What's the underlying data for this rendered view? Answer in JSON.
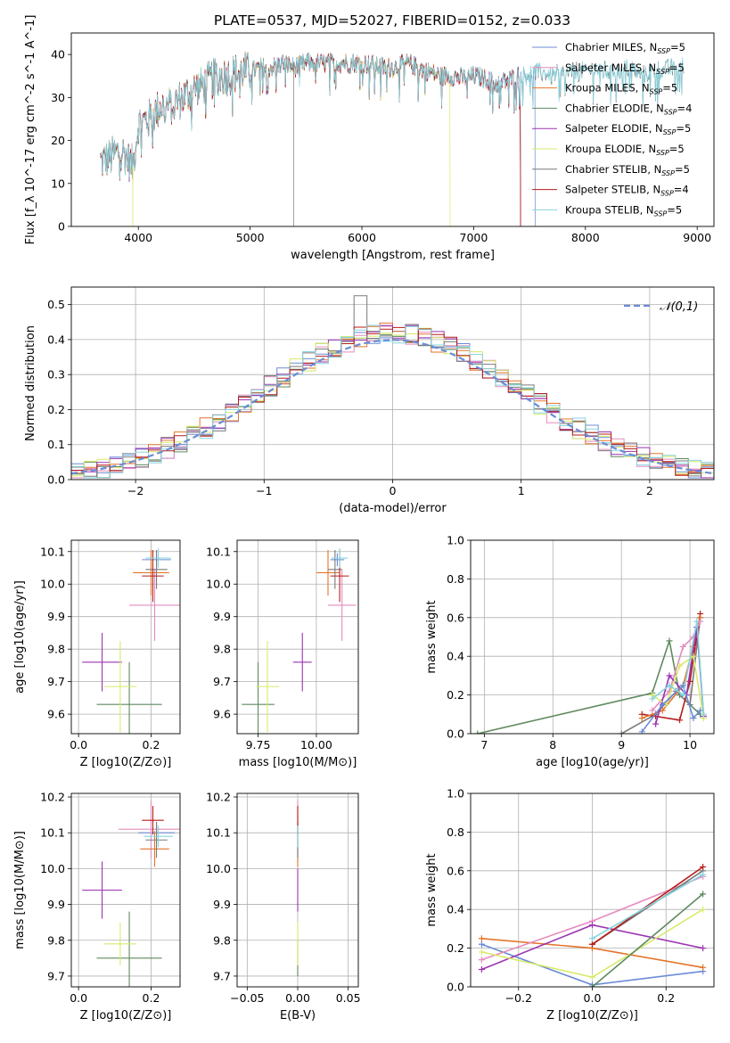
{
  "title": "PLATE=0537, MJD=52027, FIBERID=0152, z=0.033",
  "colors": {
    "Chabrier MILES": "#6b8bd6",
    "Salpeter MILES": "#e58bbe",
    "Kroupa MILES": "#e4752a",
    "Chabrier ELODIE": "#5f8a5f",
    "Salpeter ELODIE": "#9b34b1",
    "Kroupa ELODIE": "#d7ea6b",
    "Chabrier STELIB": "#7a7a7a",
    "Salpeter STELIB": "#b71c1c",
    "Kroupa STELIB": "#86d3de"
  },
  "legend1": [
    {
      "text": "Chabrier MILES, N",
      "sub": "SSP",
      "tail": "=5",
      "key": "Chabrier MILES"
    },
    {
      "text": "Salpeter MILES, N",
      "sub": "SSP",
      "tail": "=5",
      "key": "Salpeter MILES"
    },
    {
      "text": "Kroupa MILES, N",
      "sub": "SSP",
      "tail": "=5",
      "key": "Kroupa MILES"
    },
    {
      "text": "Chabrier ELODIE, N",
      "sub": "SSP",
      "tail": "=4",
      "key": "Chabrier ELODIE"
    },
    {
      "text": "Salpeter ELODIE, N",
      "sub": "SSP",
      "tail": "=5",
      "key": "Salpeter ELODIE"
    },
    {
      "text": "Kroupa ELODIE, N",
      "sub": "SSP",
      "tail": "=5",
      "key": "Kroupa ELODIE"
    },
    {
      "text": "Chabrier STELIB, N",
      "sub": "SSP",
      "tail": "=5",
      "key": "Chabrier STELIB"
    },
    {
      "text": "Salpeter STELIB, N",
      "sub": "SSP",
      "tail": "=4",
      "key": "Salpeter STELIB"
    },
    {
      "text": "Kroupa STELIB, N",
      "sub": "SSP",
      "tail": "=5",
      "key": "Kroupa STELIB"
    }
  ],
  "legend2": "𝒩(0,1)",
  "chart_data": [
    {
      "id": "spectrum",
      "type": "line",
      "xlabel": "wavelength [Angstrom, rest frame]",
      "ylabel": "Flux [f_λ 10^-17 erg cm^-2 s^-1 A^-1]",
      "xlim": [
        3400,
        9150
      ],
      "ylim": [
        0,
        45
      ],
      "xticks": [
        4000,
        5000,
        6000,
        7000,
        8000,
        9000
      ],
      "yticks": [
        0,
        10,
        20,
        30,
        40
      ],
      "continuum_x": [
        3650,
        3750,
        3850,
        3950,
        4000,
        4100,
        4200,
        4300,
        4400,
        4500,
        4600,
        4700,
        4800,
        4900,
        5000,
        5100,
        5200,
        5300,
        5400,
        5500,
        5600,
        5700,
        5800,
        5900,
        6000,
        6100,
        6200,
        6300,
        6400,
        6500,
        6600,
        6700,
        6800,
        6900,
        7000,
        7100,
        7200,
        7300,
        7400,
        7500,
        7600,
        7700,
        7800,
        7900,
        8000,
        8100,
        8200,
        8300,
        8400,
        8500,
        8600,
        8700,
        8800,
        8900
      ],
      "continuum_y": [
        15,
        16,
        18,
        14,
        24,
        25,
        28,
        28,
        30,
        32,
        33,
        35,
        35,
        36,
        36,
        37,
        37,
        38,
        37,
        38,
        38,
        38,
        38,
        38,
        38,
        37.5,
        37,
        37,
        38,
        37,
        36,
        35,
        35,
        34.5,
        35,
        34.5,
        33,
        34,
        35,
        35.5,
        36,
        35,
        35.5,
        36,
        36,
        36.5,
        36,
        36,
        37,
        35,
        36,
        36.5,
        37,
        37
      ]
    },
    {
      "id": "residuals",
      "type": "histogram",
      "xlabel": "(data-model)/error",
      "ylabel": "Normed distribution",
      "xlim": [
        -2.5,
        2.5
      ],
      "ylim": [
        0,
        0.55
      ],
      "xticks": [
        -2,
        -1,
        0,
        1,
        2
      ],
      "yticks": [
        0.0,
        0.1,
        0.2,
        0.3,
        0.4,
        0.5
      ],
      "bin_width": 0.1
    },
    {
      "id": "age-vs-Z",
      "type": "errorbar",
      "xlabel": "Z [log10(Z/Z⊙)]",
      "ylabel": "age [log10(age/yr)]",
      "xlim": [
        -0.02,
        0.28
      ],
      "ylim": [
        9.54,
        10.135
      ],
      "xticks": [
        0.0,
        0.2
      ],
      "yticks": [
        9.6,
        9.7,
        9.8,
        9.9,
        10.0,
        10.1
      ],
      "points": [
        {
          "series": "Chabrier MILES",
          "x": 0.215,
          "y": 10.075,
          "xerr": 0.04,
          "yerr": 0.02
        },
        {
          "series": "Salpeter MILES",
          "x": 0.21,
          "y": 9.935,
          "xerr": 0.07,
          "yerr": 0.11
        },
        {
          "series": "Kroupa MILES",
          "x": 0.2,
          "y": 10.035,
          "xerr": 0.05,
          "yerr": 0.07
        },
        {
          "series": "Chabrier ELODIE",
          "x": 0.14,
          "y": 9.63,
          "xerr": 0.09,
          "yerr": 0.13
        },
        {
          "series": "Salpeter ELODIE",
          "x": 0.065,
          "y": 9.76,
          "xerr": 0.055,
          "yerr": 0.09
        },
        {
          "series": "Kroupa ELODIE",
          "x": 0.115,
          "y": 9.685,
          "xerr": 0.045,
          "yerr": 0.14
        },
        {
          "series": "Chabrier STELIB",
          "x": 0.215,
          "y": 10.045,
          "xerr": 0.03,
          "yerr": 0.06
        },
        {
          "series": "Salpeter STELIB",
          "x": 0.205,
          "y": 10.025,
          "xerr": 0.03,
          "yerr": 0.08
        },
        {
          "series": "Kroupa STELIB",
          "x": 0.22,
          "y": 10.08,
          "xerr": 0.035,
          "yerr": 0.03
        }
      ]
    },
    {
      "id": "age-vs-mass",
      "type": "errorbar",
      "xlabel": "mass [log10(M/M⊙)]",
      "ylabel": "",
      "xlim": [
        9.66,
        10.18
      ],
      "ylim": [
        9.54,
        10.135
      ],
      "xticks": [
        9.75,
        10.0
      ],
      "yticks": [
        9.6,
        9.7,
        9.8,
        9.9,
        10.0,
        10.1
      ],
      "points": [
        {
          "series": "Chabrier MILES",
          "x": 10.09,
          "y": 10.075,
          "xerr": 0.03,
          "yerr": 0.02
        },
        {
          "series": "Salpeter MILES",
          "x": 10.11,
          "y": 9.935,
          "xerr": 0.06,
          "yerr": 0.11
        },
        {
          "series": "Kroupa MILES",
          "x": 10.05,
          "y": 10.035,
          "xerr": 0.05,
          "yerr": 0.07
        },
        {
          "series": "Chabrier ELODIE",
          "x": 9.75,
          "y": 9.63,
          "xerr": 0.07,
          "yerr": 0.13
        },
        {
          "series": "Salpeter ELODIE",
          "x": 9.94,
          "y": 9.76,
          "xerr": 0.04,
          "yerr": 0.09
        },
        {
          "series": "Kroupa ELODIE",
          "x": 9.79,
          "y": 9.685,
          "xerr": 0.05,
          "yerr": 0.14
        },
        {
          "series": "Chabrier STELIB",
          "x": 10.08,
          "y": 10.045,
          "xerr": 0.03,
          "yerr": 0.06
        },
        {
          "series": "Salpeter STELIB",
          "x": 10.1,
          "y": 10.025,
          "xerr": 0.04,
          "yerr": 0.08
        },
        {
          "series": "Kroupa STELIB",
          "x": 10.1,
          "y": 10.08,
          "xerr": 0.035,
          "yerr": 0.03
        }
      ]
    },
    {
      "id": "weight-vs-age",
      "type": "line",
      "xlabel": "age [log10(age/yr)]",
      "ylabel": "mass weight",
      "xlim": [
        6.8,
        10.35
      ],
      "ylim": [
        0,
        1.0
      ],
      "xticks": [
        7,
        8,
        9,
        10
      ],
      "yticks": [
        0.0,
        0.2,
        0.4,
        0.6,
        0.8,
        1.0
      ],
      "series": [
        {
          "name": "Chabrier ELODIE",
          "x": [
            6.9,
            9.45,
            9.7,
            9.85,
            10.15
          ],
          "y": [
            0.0,
            0.21,
            0.48,
            0.2,
            0.1
          ]
        },
        {
          "name": "Chabrier STELIB",
          "x": [
            9.0,
            9.5,
            9.8,
            10.0,
            10.15
          ],
          "y": [
            0.0,
            0.1,
            0.22,
            0.15,
            0.6
          ]
        },
        {
          "name": "Salpeter STELIB",
          "x": [
            9.3,
            9.5,
            9.85,
            10.0,
            10.15
          ],
          "y": [
            0.1,
            0.09,
            0.07,
            0.27,
            0.62
          ]
        },
        {
          "name": "Kroupa MILES",
          "x": [
            9.3,
            9.6,
            9.9,
            10.05,
            10.15
          ],
          "y": [
            0.08,
            0.12,
            0.25,
            0.45,
            0.6
          ]
        },
        {
          "name": "Salpeter MILES",
          "x": [
            9.45,
            9.7,
            9.9,
            10.05,
            10.15
          ],
          "y": [
            0.12,
            0.22,
            0.45,
            0.5,
            0.58
          ]
        },
        {
          "name": "Salpeter ELODIE",
          "x": [
            9.5,
            9.7,
            9.95,
            10.1,
            10.2
          ],
          "y": [
            0.05,
            0.3,
            0.2,
            0.55,
            0.09
          ]
        },
        {
          "name": "Kroupa ELODIE",
          "x": [
            9.45,
            9.65,
            9.85,
            10.05,
            10.2
          ],
          "y": [
            0.2,
            0.15,
            0.35,
            0.4,
            0.08
          ]
        },
        {
          "name": "Chabrier MILES",
          "x": [
            9.3,
            9.6,
            9.9,
            10.05,
            10.15
          ],
          "y": [
            0.01,
            0.15,
            0.25,
            0.08,
            0.12
          ]
        },
        {
          "name": "Kroupa STELIB",
          "x": [
            9.45,
            9.7,
            9.9,
            10.1,
            10.2
          ],
          "y": [
            0.18,
            0.25,
            0.2,
            0.58,
            0.1
          ]
        }
      ]
    },
    {
      "id": "mass-vs-Z",
      "type": "errorbar",
      "xlabel": "Z [log10(Z/Z⊙)]",
      "ylabel": "mass [log10(M/M⊙)]",
      "xlim": [
        -0.02,
        0.28
      ],
      "ylim": [
        9.67,
        10.21
      ],
      "xticks": [
        0.0,
        0.2
      ],
      "yticks": [
        9.7,
        9.8,
        9.9,
        10.0,
        10.1,
        10.2
      ],
      "points": [
        {
          "series": "Chabrier MILES",
          "x": 0.215,
          "y": 10.1,
          "xerr": 0.05,
          "yerr": 0.03
        },
        {
          "series": "Salpeter MILES",
          "x": 0.2,
          "y": 10.11,
          "xerr": 0.09,
          "yerr": 0.08
        },
        {
          "series": "Kroupa MILES",
          "x": 0.21,
          "y": 10.055,
          "xerr": 0.04,
          "yerr": 0.05
        },
        {
          "series": "Chabrier ELODIE",
          "x": 0.14,
          "y": 9.75,
          "xerr": 0.09,
          "yerr": 0.13
        },
        {
          "series": "Salpeter ELODIE",
          "x": 0.065,
          "y": 9.94,
          "xerr": 0.055,
          "yerr": 0.08
        },
        {
          "series": "Kroupa ELODIE",
          "x": 0.115,
          "y": 9.79,
          "xerr": 0.045,
          "yerr": 0.06
        },
        {
          "series": "Chabrier STELIB",
          "x": 0.215,
          "y": 10.08,
          "xerr": 0.03,
          "yerr": 0.05
        },
        {
          "series": "Salpeter STELIB",
          "x": 0.205,
          "y": 10.135,
          "xerr": 0.03,
          "yerr": 0.04
        },
        {
          "series": "Kroupa STELIB",
          "x": 0.22,
          "y": 10.09,
          "xerr": 0.04,
          "yerr": 0.03
        }
      ]
    },
    {
      "id": "mass-vs-ebv",
      "type": "errorbar",
      "xlabel": "E(B-V)",
      "ylabel": "",
      "xlim": [
        -0.06,
        0.06
      ],
      "ylim": [
        9.67,
        10.21
      ],
      "xticks": [
        -0.05,
        0.0,
        0.05
      ],
      "yticks": [
        9.7,
        9.8,
        9.9,
        10.0,
        10.1,
        10.2
      ],
      "points": [
        {
          "series": "Chabrier MILES",
          "x": 0.0,
          "y": 10.1,
          "xerr": 0.0,
          "yerr": 0.03
        },
        {
          "series": "Salpeter MILES",
          "x": 0.0,
          "y": 10.11,
          "xerr": 0.0,
          "yerr": 0.08
        },
        {
          "series": "Kroupa MILES",
          "x": 0.0,
          "y": 10.055,
          "xerr": 0.0,
          "yerr": 0.05
        },
        {
          "series": "Chabrier ELODIE",
          "x": 0.0,
          "y": 9.75,
          "xerr": 0.0,
          "yerr": 0.05
        },
        {
          "series": "Salpeter ELODIE",
          "x": 0.0,
          "y": 9.94,
          "xerr": 0.0,
          "yerr": 0.06
        },
        {
          "series": "Kroupa ELODIE",
          "x": 0.0,
          "y": 9.79,
          "xerr": 0.0,
          "yerr": 0.06
        },
        {
          "series": "Chabrier STELIB",
          "x": 0.0,
          "y": 10.08,
          "xerr": 0.0,
          "yerr": 0.05
        },
        {
          "series": "Salpeter STELIB",
          "x": 0.0,
          "y": 10.135,
          "xerr": 0.0,
          "yerr": 0.04
        },
        {
          "series": "Kroupa STELIB",
          "x": 0.0,
          "y": 10.09,
          "xerr": 0.0,
          "yerr": 0.03
        }
      ]
    },
    {
      "id": "weight-vs-Z",
      "type": "line",
      "xlabel": "Z [log10(Z/Z⊙)]",
      "ylabel": "mass weight",
      "xlim": [
        -0.33,
        0.33
      ],
      "ylim": [
        0,
        1.0
      ],
      "xticks": [
        -0.2,
        0.0,
        0.2
      ],
      "yticks": [
        0.0,
        0.2,
        0.4,
        0.6,
        0.8,
        1.0
      ],
      "series": [
        {
          "name": "Chabrier MILES",
          "x": [
            -0.3,
            0.0,
            0.3
          ],
          "y": [
            0.22,
            0.01,
            0.08
          ]
        },
        {
          "name": "Kroupa MILES",
          "x": [
            -0.3,
            0.0,
            0.3
          ],
          "y": [
            0.25,
            0.2,
            0.1
          ]
        },
        {
          "name": "Salpeter MILES",
          "x": [
            -0.3,
            0.0,
            0.3
          ],
          "y": [
            0.14,
            0.34,
            0.57
          ]
        },
        {
          "name": "Salpeter ELODIE",
          "x": [
            -0.3,
            0.0,
            0.3
          ],
          "y": [
            0.09,
            0.32,
            0.2
          ]
        },
        {
          "name": "Kroupa ELODIE",
          "x": [
            -0.3,
            0.0,
            0.3
          ],
          "y": [
            0.18,
            0.05,
            0.4
          ]
        },
        {
          "name": "Chabrier ELODIE",
          "x": [
            0.0,
            0.3
          ],
          "y": [
            0.0,
            0.48
          ]
        },
        {
          "name": "Chabrier STELIB",
          "x": [
            0.0,
            0.3
          ],
          "y": [
            0.22,
            0.6
          ]
        },
        {
          "name": "Salpeter STELIB",
          "x": [
            0.0,
            0.3
          ],
          "y": [
            0.22,
            0.62
          ]
        },
        {
          "name": "Kroupa STELIB",
          "x": [
            0.0,
            0.3
          ],
          "y": [
            0.25,
            0.58
          ]
        }
      ]
    }
  ]
}
